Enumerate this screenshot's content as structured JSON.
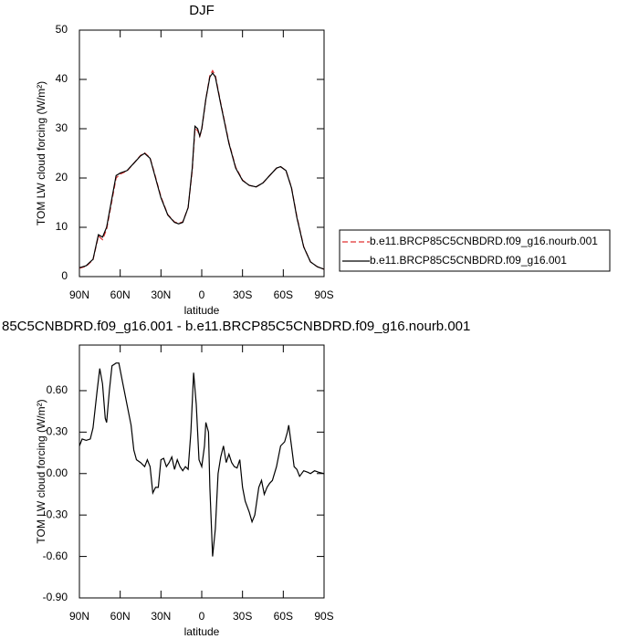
{
  "chart_data": [
    {
      "type": "line",
      "title": "DJF",
      "x_label": "latitude",
      "y_label": "TOM LW cloud forcing (W/m²)",
      "xlim": [
        90,
        -90
      ],
      "ylim": [
        0,
        50
      ],
      "xticks": [
        {
          "value": 90,
          "label": "90N"
        },
        {
          "value": 60,
          "label": "60N"
        },
        {
          "value": 30,
          "label": "30N"
        },
        0,
        {
          "value": -30,
          "label": "30S"
        },
        {
          "value": -60,
          "label": "60S"
        },
        {
          "value": -90,
          "label": "90S"
        }
      ],
      "yticks": [
        0,
        10,
        20,
        30,
        40,
        50
      ],
      "legend": "right",
      "x": [
        90,
        85,
        80,
        76,
        73,
        70,
        66,
        63,
        60,
        55,
        50,
        45,
        42,
        38,
        35,
        30,
        25,
        20,
        17,
        14,
        10,
        7,
        5,
        3,
        1.5,
        0,
        -3,
        -6,
        -8,
        -10,
        -14,
        -20,
        -25,
        -30,
        -35,
        -40,
        -45,
        -50,
        -55,
        -58,
        -62,
        -66,
        -70,
        -75,
        -80,
        -85,
        -90
      ],
      "series": [
        {
          "name": "b.e11.BRCP85C5CNBDRD.f09_g16.nourb.001",
          "color": "#e03030",
          "dashed": true,
          "values": [
            1.7,
            2.1,
            3.4,
            8.2,
            7.5,
            9.6,
            15.5,
            20,
            20.8,
            21.4,
            23,
            24.6,
            25.1,
            24.1,
            21.2,
            16.2,
            12.6,
            11.1,
            10.8,
            11.1,
            14,
            21.5,
            30,
            29.6,
            28.4,
            29.8,
            36,
            40.8,
            41.8,
            40.8,
            35.2,
            27.2,
            22.2,
            19.6,
            18.5,
            18.2,
            19,
            20.5,
            22,
            22.3,
            21.5,
            18.1,
            12.2,
            6.1,
            3,
            2,
            1.5
          ]
        },
        {
          "name": "b.e11.BRCP85C5CNBDRD.f09_g16.001",
          "color": "#000000",
          "dashed": false,
          "values": [
            1.8,
            2.2,
            3.5,
            8.5,
            8,
            10,
            16,
            20.5,
            21,
            21.5,
            23,
            24.5,
            25,
            24,
            21,
            16,
            12.5,
            11,
            10.7,
            11,
            14,
            22,
            30.5,
            30,
            28.5,
            30,
            36,
            40.5,
            41.3,
            40.5,
            35,
            27,
            22,
            19.5,
            18.5,
            18.2,
            19,
            20.5,
            22,
            22.3,
            21.5,
            18,
            12,
            6,
            3,
            2,
            1.5
          ]
        }
      ]
    },
    {
      "type": "line",
      "title": "85C5CNBDRD.f09_g16.001 - b.e11.BRCP85C5CNBDRD.f09_g16.nourb.001",
      "x_label": "latitude",
      "y_label": "TOM LW cloud forcing (W/m²)",
      "xlim": [
        90,
        -90
      ],
      "ylim": [
        -0.9,
        0.93
      ],
      "xticks": [
        {
          "value": 90,
          "label": "90N"
        },
        {
          "value": 60,
          "label": "60N"
        },
        {
          "value": 30,
          "label": "30N"
        },
        0,
        {
          "value": -30,
          "label": "30S"
        },
        {
          "value": -60,
          "label": "60S"
        },
        {
          "value": -90,
          "label": "90S"
        }
      ],
      "yticks": [
        {
          "value": -0.9,
          "label": "-0.90"
        },
        {
          "value": -0.6,
          "label": "-0.60"
        },
        {
          "value": -0.3,
          "label": "-0.30"
        },
        {
          "value": 0,
          "label": "0.00"
        },
        {
          "value": 0.3,
          "label": "0.30"
        },
        {
          "value": 0.6,
          "label": "0.60"
        }
      ],
      "color": "#000000",
      "x": [
        90,
        88,
        85,
        82,
        80,
        77,
        75,
        73,
        71,
        70,
        68,
        66,
        63,
        61,
        58,
        55,
        52,
        50,
        48,
        45,
        42,
        40,
        38,
        36,
        34,
        32,
        30,
        28,
        26,
        24,
        22,
        20,
        18,
        16,
        14,
        12,
        10,
        8,
        6,
        4,
        2,
        0,
        -2,
        -3,
        -5,
        -6,
        -8,
        -10,
        -12,
        -14,
        -16,
        -18,
        -20,
        -22,
        -24,
        -26,
        -28,
        -30,
        -32,
        -35,
        -37,
        -39,
        -42,
        -44,
        -46,
        -48,
        -50,
        -52,
        -55,
        -58,
        -61,
        -63,
        -64,
        -66,
        -68,
        -70,
        -72,
        -75,
        -78,
        -80,
        -83,
        -86,
        -90
      ],
      "values": [
        0.2,
        0.25,
        0.24,
        0.25,
        0.33,
        0.6,
        0.76,
        0.65,
        0.4,
        0.37,
        0.6,
        0.78,
        0.8,
        0.8,
        0.65,
        0.5,
        0.35,
        0.17,
        0.1,
        0.08,
        0.05,
        0.1,
        0.05,
        -0.14,
        -0.1,
        -0.1,
        0.1,
        0.11,
        0.05,
        0.08,
        0.12,
        0.03,
        0.1,
        0.05,
        0.02,
        0.05,
        0.03,
        0.3,
        0.73,
        0.5,
        0.1,
        0.05,
        0.2,
        0.37,
        0.3,
        -0.1,
        -0.6,
        -0.4,
        0.0,
        0.12,
        0.2,
        0.08,
        0.14,
        0.08,
        0.05,
        0.04,
        0.1,
        -0.1,
        -0.2,
        -0.28,
        -0.35,
        -0.3,
        -0.1,
        -0.05,
        -0.15,
        -0.1,
        -0.07,
        -0.05,
        0.05,
        0.2,
        0.23,
        0.3,
        0.35,
        0.2,
        0.05,
        0.03,
        -0.02,
        0.02,
        0.01,
        0.0,
        0.02,
        0.01,
        0.0
      ]
    }
  ]
}
